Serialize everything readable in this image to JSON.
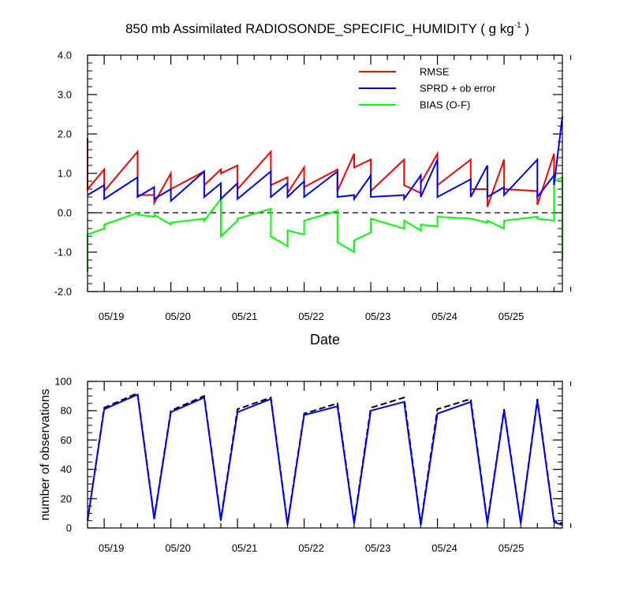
{
  "chart_data": [
    {
      "type": "line",
      "title": "850 mb Assimilated RADIOSONDE_SPECIFIC_HUMIDITY ( g kg",
      "title_units_exp": "-1",
      "title_end": " )",
      "xlabel": "Date",
      "ylabel": "",
      "ylim": [
        -2.0,
        4.0
      ],
      "xlim": [
        0,
        7.125
      ],
      "yticks": [
        4.0,
        3.0,
        2.0,
        1.0,
        0.0,
        -1.0,
        -2.0
      ],
      "ytick_labels": [
        "4.0",
        "3.0",
        "2.0",
        "1.0",
        "0.0",
        "-1.0",
        "-2.0"
      ],
      "xticks": [
        0.25,
        1.25,
        2.25,
        3.25,
        4.25,
        5.25,
        6.25
      ],
      "xtick_labels": [
        "05/19",
        "05/20",
        "05/21",
        "05/22",
        "05/23",
        "05/24",
        "05/25"
      ],
      "zero_line": true,
      "legend_position": "top-right",
      "legend": [
        "RMSE",
        "SPRD + ob error",
        "BIAS (O-F)"
      ],
      "series": [
        {
          "name": "RMSE",
          "color": "#ff0000",
          "x": [
            0,
            0,
            0.25,
            0.25,
            0.75,
            0.75,
            1.0,
            1.0,
            1.25,
            1.25,
            1.75,
            1.75,
            2.0,
            2.0,
            2.25,
            2.25,
            2.75,
            2.75,
            3.0,
            3.0,
            3.25,
            3.25,
            3.75,
            3.75,
            4.0,
            4.0,
            4.25,
            4.25,
            4.75,
            4.75,
            5.0,
            5.0,
            5.25,
            5.25,
            5.75,
            5.75,
            6.0,
            6.0,
            6.25,
            6.25,
            6.75,
            6.75,
            7.0,
            7.0
          ],
          "values": [
            1.9,
            0.6,
            1.1,
            0.55,
            1.55,
            0.45,
            0.45,
            0.25,
            1.0,
            0.6,
            1.05,
            0.7,
            1.1,
            1.0,
            1.2,
            0.6,
            1.55,
            0.7,
            0.9,
            0.5,
            1.15,
            0.65,
            1.1,
            0.55,
            1.5,
            1.15,
            1.35,
            0.55,
            1.35,
            0.7,
            0.5,
            0.75,
            1.5,
            0.7,
            1.35,
            0.6,
            0.6,
            0.15,
            1.35,
            0.6,
            0.55,
            0.2,
            1.5,
            0.95
          ]
        },
        {
          "name": "SPRD + ob error",
          "color": "#0000ff",
          "x": [
            0,
            0.25,
            0.25,
            0.75,
            0.75,
            1.0,
            1.0,
            1.25,
            1.25,
            1.75,
            1.75,
            2.0,
            2.0,
            2.25,
            2.25,
            2.75,
            2.75,
            3.0,
            3.0,
            3.25,
            3.25,
            3.75,
            3.75,
            4.0,
            4.0,
            4.25,
            4.25,
            4.75,
            4.75,
            5.0,
            5.0,
            5.25,
            5.25,
            5.75,
            5.75,
            6.0,
            6.0,
            6.25,
            6.25,
            6.75,
            6.75,
            7.0,
            7.0,
            7.125
          ],
          "values": [
            0.45,
            0.7,
            0.35,
            0.9,
            0.4,
            0.65,
            0.35,
            0.6,
            0.3,
            1.05,
            0.4,
            0.75,
            0.35,
            0.75,
            0.35,
            1.05,
            0.4,
            0.75,
            0.4,
            0.8,
            0.4,
            1.05,
            0.4,
            0.45,
            0.35,
            0.95,
            0.4,
            0.45,
            0.35,
            0.95,
            0.4,
            1.35,
            0.4,
            0.85,
            0.4,
            1.2,
            0.4,
            0.65,
            0.45,
            1.35,
            0.4,
            0.95,
            0.7,
            2.45
          ]
        },
        {
          "name": "BIAS (O-F)",
          "color": "#00ff00",
          "x": [
            0,
            0,
            0.25,
            0.25,
            0.75,
            0.75,
            1.0,
            1.0,
            1.25,
            1.25,
            1.75,
            1.75,
            2.0,
            2.0,
            2.25,
            2.25,
            2.75,
            2.75,
            3.0,
            3.0,
            3.25,
            3.25,
            3.75,
            3.75,
            4.0,
            4.0,
            4.25,
            4.25,
            4.75,
            4.75,
            5.0,
            5.0,
            5.25,
            5.25,
            5.75,
            5.75,
            6.0,
            6.0,
            6.25,
            6.25,
            6.75,
            6.75,
            7.0,
            7.0,
            7.125,
            7.125
          ],
          "values": [
            -1.5,
            -0.55,
            -0.4,
            -0.3,
            0.0,
            -0.05,
            -0.1,
            -0.05,
            -0.3,
            -0.25,
            -0.15,
            -0.2,
            0.35,
            -0.6,
            -0.2,
            -0.15,
            0.1,
            -0.6,
            -0.85,
            -0.45,
            -0.55,
            -0.2,
            0.05,
            -0.75,
            -1.0,
            -0.7,
            -0.5,
            -0.15,
            -0.4,
            -0.2,
            -0.45,
            -0.3,
            -0.35,
            -0.1,
            -0.15,
            -0.15,
            -0.25,
            -0.2,
            -0.4,
            -0.2,
            -0.1,
            -0.15,
            -0.2,
            0.8,
            0.9,
            -1.2
          ]
        }
      ]
    },
    {
      "type": "line",
      "title": "",
      "xlabel": "",
      "ylabel": "number of observations",
      "ylim": [
        0,
        100
      ],
      "xlim": [
        0,
        7.125
      ],
      "yticks": [
        100,
        80,
        60,
        40,
        20,
        0
      ],
      "ytick_labels": [
        "100",
        "80",
        "60",
        "40",
        "20",
        "0"
      ],
      "xticks": [
        0.25,
        1.25,
        2.25,
        3.25,
        4.25,
        5.25,
        6.25
      ],
      "xtick_labels": [
        "05/19",
        "05/20",
        "05/21",
        "05/22",
        "05/23",
        "05/24",
        "05/25"
      ],
      "series": [
        {
          "color": "#000000",
          "dashed": true,
          "x": [
            0,
            0.25,
            0.75,
            1.0,
            1.25,
            1.75,
            2.0,
            2.25,
            2.75,
            3.0,
            3.25,
            3.75,
            4.0,
            4.25,
            4.75,
            5.0,
            5.25,
            5.75,
            6.0,
            6.25,
            6.5,
            6.75,
            7.0,
            7.125
          ],
          "values": [
            5,
            82,
            92,
            7,
            80,
            90,
            6,
            81,
            89,
            3,
            78,
            85,
            4,
            82,
            89,
            3,
            81,
            88,
            4,
            81,
            4,
            88,
            5,
            3
          ]
        },
        {
          "color": "#0000ff",
          "dashed": false,
          "x": [
            0,
            0.25,
            0.75,
            1.0,
            1.25,
            1.75,
            2.0,
            2.25,
            2.75,
            3.0,
            3.25,
            3.75,
            4.0,
            4.25,
            4.75,
            5.0,
            5.25,
            5.75,
            6.0,
            6.25,
            6.5,
            6.75,
            7.0,
            7.125
          ],
          "values": [
            5,
            81,
            91,
            6,
            79,
            89,
            5,
            79,
            88,
            2,
            77,
            83,
            3,
            80,
            86,
            2,
            78,
            86,
            3,
            80,
            3,
            87,
            4,
            2
          ]
        }
      ]
    }
  ]
}
